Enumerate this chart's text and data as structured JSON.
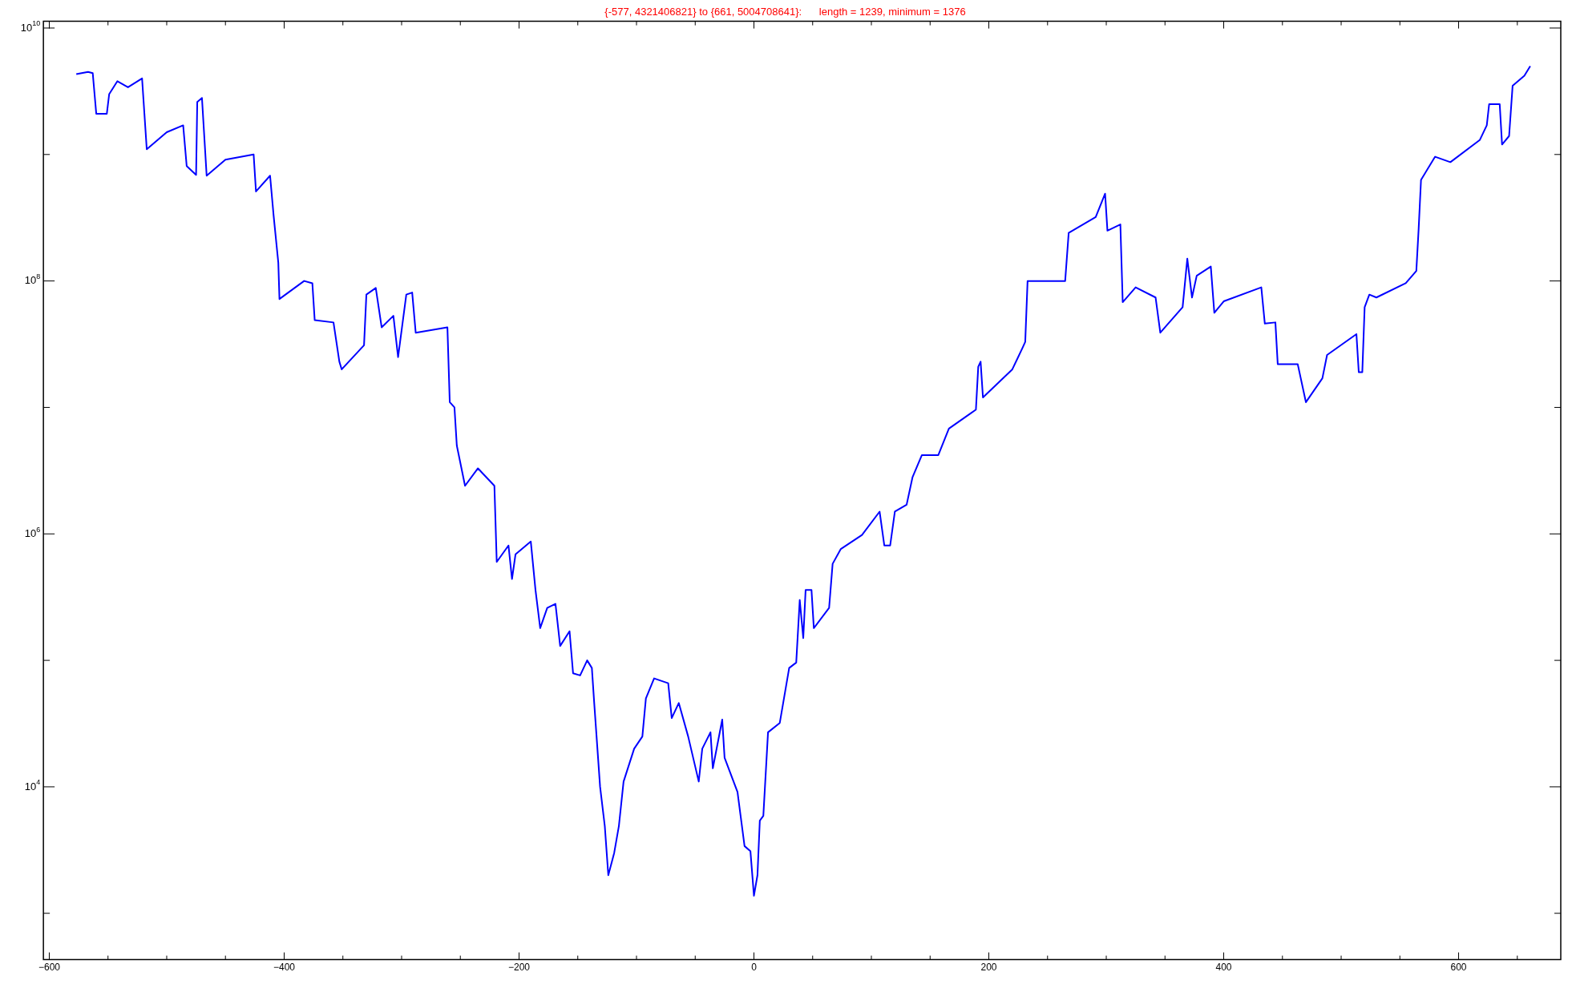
{
  "chart_data": {
    "type": "line",
    "title": "{-577, 4321406821} to {661, 5004708641}:      length = 1239, minimum = 1376",
    "log": "y",
    "grid": false,
    "legend": false,
    "marker": "none",
    "line_style": "solid",
    "xlim": [
      -605,
      687
    ],
    "ylim": [
      430,
      11300000000.0
    ],
    "xticks": [
      -600,
      {
        "value": -550,
        "label": null
      },
      {
        "value": -500,
        "label": null
      },
      {
        "value": -450,
        "label": null
      },
      -400,
      {
        "value": -350,
        "label": null
      },
      {
        "value": -300,
        "label": null
      },
      {
        "value": -250,
        "label": null
      },
      -200,
      {
        "value": -150,
        "label": null
      },
      {
        "value": -100,
        "label": null
      },
      {
        "value": -50,
        "label": null
      },
      0,
      {
        "value": 50,
        "label": null
      },
      {
        "value": 100,
        "label": null
      },
      {
        "value": 150,
        "label": null
      },
      200,
      {
        "value": 250,
        "label": null
      },
      {
        "value": 300,
        "label": null
      },
      {
        "value": 350,
        "label": null
      },
      400,
      {
        "value": 450,
        "label": null
      },
      {
        "value": 500,
        "label": null
      },
      {
        "value": 550,
        "label": null
      },
      600,
      {
        "value": 650,
        "label": null
      }
    ],
    "yticks": [
      {
        "value": 1000,
        "label": null
      },
      {
        "value": 10000,
        "label": "10$^{4}$"
      },
      {
        "value": 100000,
        "label": null
      },
      {
        "value": 1000000,
        "label": "10$^{6}$"
      },
      {
        "value": 10000000,
        "label": null
      },
      {
        "value": 100000000,
        "label": "10$^{8}$"
      },
      {
        "value": 1000000000,
        "label": null
      },
      {
        "value": 10000000000,
        "label": "10$^{10}$"
      }
    ],
    "series": [
      {
        "color": "#0000ff",
        "x": [
          -577,
          -567,
          -563,
          -560,
          -551,
          -549,
          -542,
          -533,
          -521,
          -519,
          -517,
          -500,
          -486,
          -483,
          -475,
          -474,
          -470,
          -466,
          -450,
          -426,
          -424,
          -412,
          -409,
          -405,
          -404,
          -383,
          -376,
          -374,
          -358,
          -353,
          -351,
          -332,
          -330,
          -322,
          -317,
          -307,
          -303,
          -296,
          -291,
          -288,
          -261,
          -259,
          -255,
          -253,
          -246,
          -235,
          -221,
          -219,
          -209,
          -206,
          -203,
          -190,
          -186,
          -182,
          -176,
          -169,
          -165,
          -157,
          -154,
          -148,
          -142,
          -138,
          -136,
          -131,
          -127,
          -124,
          -119,
          -115,
          -111,
          -102,
          -95,
          -92,
          -85,
          -73,
          -70,
          -64,
          -56,
          -47,
          -44,
          -37,
          -35,
          -27,
          -25,
          -14,
          -8,
          -3,
          0,
          3,
          5,
          8,
          12,
          22,
          30,
          36,
          39,
          42,
          44,
          49,
          51,
          64,
          67,
          74,
          92,
          107,
          111,
          116,
          120,
          130,
          135,
          143,
          157,
          166,
          184,
          189,
          191,
          193,
          195,
          220,
          229,
          231,
          233,
          265,
          268,
          291,
          299,
          301,
          312,
          314,
          325,
          342,
          346,
          365,
          369,
          373,
          377,
          389,
          392,
          400,
          432,
          435,
          444,
          446,
          463,
          470,
          484,
          488,
          513,
          515,
          518,
          520,
          524,
          530,
          555,
          564,
          566,
          568,
          580,
          593,
          618,
          624,
          626,
          635,
          637,
          643,
          646,
          656,
          661
        ],
        "values": [
          4321406821,
          4500000000.0,
          4400000000.0,
          2100000000.0,
          2100000000.0,
          3000000000.0,
          3800000000.0,
          3400000000.0,
          4000000000.0,
          2100000000.0,
          1100000000.0,
          1500000000.0,
          1700000000.0,
          810000000.0,
          690000000.0,
          2600000000.0,
          2800000000.0,
          680000000.0,
          910000000.0,
          1000000000.0,
          510000000.0,
          680000000.0,
          330000000.0,
          140000000.0,
          72000000.0,
          100000000.0,
          96000000.0,
          49000000.0,
          47000000.0,
          23000000.0,
          20000000.0,
          31000000.0,
          78000000.0,
          88000000.0,
          43000000.0,
          53000000.0,
          25000000.0,
          78000000.0,
          81000000.0,
          39000000.0,
          43000000.0,
          11000000.0,
          10000000.0,
          5000000.0,
          2400000.0,
          3300000.0,
          2400000.0,
          600000.0,
          810000.0,
          440000.0,
          690000.0,
          870000.0,
          360000.0,
          180000.0,
          260000.0,
          280000.0,
          130000.0,
          170000.0,
          79000.0,
          76000.0,
          100000.0,
          87000.0,
          46000.0,
          10000.0,
          4900.0,
          2000.0,
          3000.0,
          4900.0,
          11000.0,
          20000.0,
          25000.0,
          50000.0,
          72000.0,
          66000.0,
          35000.0,
          46000.0,
          25000.0,
          11000.0,
          20000.0,
          27000.0,
          14000.0,
          34000.0,
          17000.0,
          9100.0,
          3400.0,
          3100.0,
          1376,
          2000.0,
          5400.0,
          5900.0,
          27000.0,
          32000.0,
          87000.0,
          96000.0,
          300000.0,
          150000.0,
          360000.0,
          360000.0,
          180000.0,
          260000.0,
          580000.0,
          760000.0,
          980000.0,
          1500000.0,
          810000.0,
          810000.0,
          1500000.0,
          1700000.0,
          2800000.0,
          4200000.0,
          4200000.0,
          6800000.0,
          8900000.0,
          9600000.0,
          21000000.0,
          23000000.0,
          12000000.0,
          20000000.0,
          30000000.0,
          33000000.0,
          100000000.0,
          100000000.0,
          240000000.0,
          320000000.0,
          490000000.0,
          250000000.0,
          280000000.0,
          68000000.0,
          89000000.0,
          74000000.0,
          39000000.0,
          62000000.0,
          150000000.0,
          74000000.0,
          110000000.0,
          130000000.0,
          56000000.0,
          69000000.0,
          89000000.0,
          46000000.0,
          47000000.0,
          22000000.0,
          22000000.0,
          11000000.0,
          17000000.0,
          26000000.0,
          38000000.0,
          19000000.0,
          19000000.0,
          62000000.0,
          78000000.0,
          74000000.0,
          96000000.0,
          120000000.0,
          260000000.0,
          630000000.0,
          960000000.0,
          870000000.0,
          1300000000.0,
          1700000000.0,
          2500000000.0,
          2500000000.0,
          1200000000.0,
          1400000000.0,
          3500000000.0,
          4200000000.0,
          5004708641
        ]
      }
    ]
  }
}
